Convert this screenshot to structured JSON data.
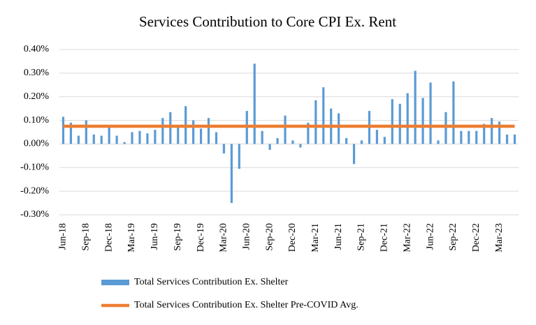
{
  "chart_data": {
    "type": "bar",
    "title": "Services Contribution to Core CPI Ex. Rent",
    "categories": [
      "Jun-18",
      null,
      null,
      "Sep-18",
      null,
      null,
      "Dec-18",
      null,
      null,
      "Mar-19",
      null,
      null,
      "Jun-19",
      null,
      null,
      "Sep-19",
      null,
      null,
      "Dec-19",
      null,
      null,
      "Mar-20",
      null,
      null,
      "Jun-20",
      null,
      null,
      "Sep-20",
      null,
      null,
      "Dec-20",
      null,
      null,
      "Mar-21",
      null,
      null,
      "Jun-21",
      null,
      null,
      "Sep-21",
      null,
      null,
      "Dec-21",
      null,
      null,
      "Mar-22",
      null,
      null,
      "Jun-22",
      null,
      null,
      "Sep-22",
      null,
      null,
      "Dec-22",
      null,
      null,
      "Mar-23",
      null,
      null
    ],
    "series": [
      {
        "name": "Total Services Contribution Ex. Shelter",
        "type": "bar",
        "color": "#5b9bd5",
        "values": [
          0.115,
          0.09,
          0.035,
          0.1,
          0.04,
          0.035,
          0.07,
          0.035,
          0.008,
          0.05,
          0.055,
          0.045,
          0.06,
          0.11,
          0.135,
          0.07,
          0.16,
          0.1,
          0.065,
          0.11,
          0.05,
          -0.04,
          -0.25,
          -0.105,
          0.14,
          0.34,
          0.055,
          -0.025,
          0.025,
          0.12,
          0.015,
          -0.015,
          0.09,
          0.185,
          0.24,
          0.15,
          0.13,
          0.025,
          -0.085,
          0.015,
          0.14,
          0.06,
          0.03,
          0.19,
          0.17,
          0.215,
          0.31,
          0.195,
          0.26,
          0.015,
          0.135,
          0.265,
          0.055,
          0.055,
          0.055,
          0.085,
          0.11,
          0.095,
          0.04,
          0.04
        ]
      },
      {
        "name": "Total Services Contribution Ex. Shelter Pre-COVID Avg.",
        "type": "line",
        "color": "#ed7d31",
        "values": [
          0.075,
          0.075,
          0.075,
          0.075,
          0.075,
          0.075,
          0.075,
          0.075,
          0.075,
          0.075,
          0.075,
          0.075,
          0.075,
          0.075,
          0.075,
          0.075,
          0.075,
          0.075,
          0.075,
          0.075,
          0.075,
          0.075,
          0.075,
          0.075,
          0.075,
          0.075,
          0.075,
          0.075,
          0.075,
          0.075,
          0.075,
          0.075,
          0.075,
          0.075,
          0.075,
          0.075,
          0.075,
          0.075,
          0.075,
          0.075,
          0.075,
          0.075,
          0.075,
          0.075,
          0.075,
          0.075,
          0.075,
          0.075,
          0.075,
          0.075,
          0.075,
          0.075,
          0.075,
          0.075,
          0.075,
          0.075,
          0.075,
          0.075,
          0.075,
          0.075
        ]
      }
    ],
    "ylim": [
      -0.3,
      0.4
    ],
    "yticks": [
      {
        "value": -0.3,
        "label": "-0.30%"
      },
      {
        "value": -0.2,
        "label": "-0.20%"
      },
      {
        "value": -0.1,
        "label": "-0.10%"
      },
      {
        "value": 0,
        "label": "0.00%"
      },
      {
        "value": 0.1,
        "label": "0.10%"
      },
      {
        "value": 0.2,
        "label": "0.20%"
      },
      {
        "value": 0.3,
        "label": "0.30%"
      },
      {
        "value": 0.4,
        "label": "0.40%"
      }
    ],
    "grid": true,
    "legend": "bottom"
  }
}
